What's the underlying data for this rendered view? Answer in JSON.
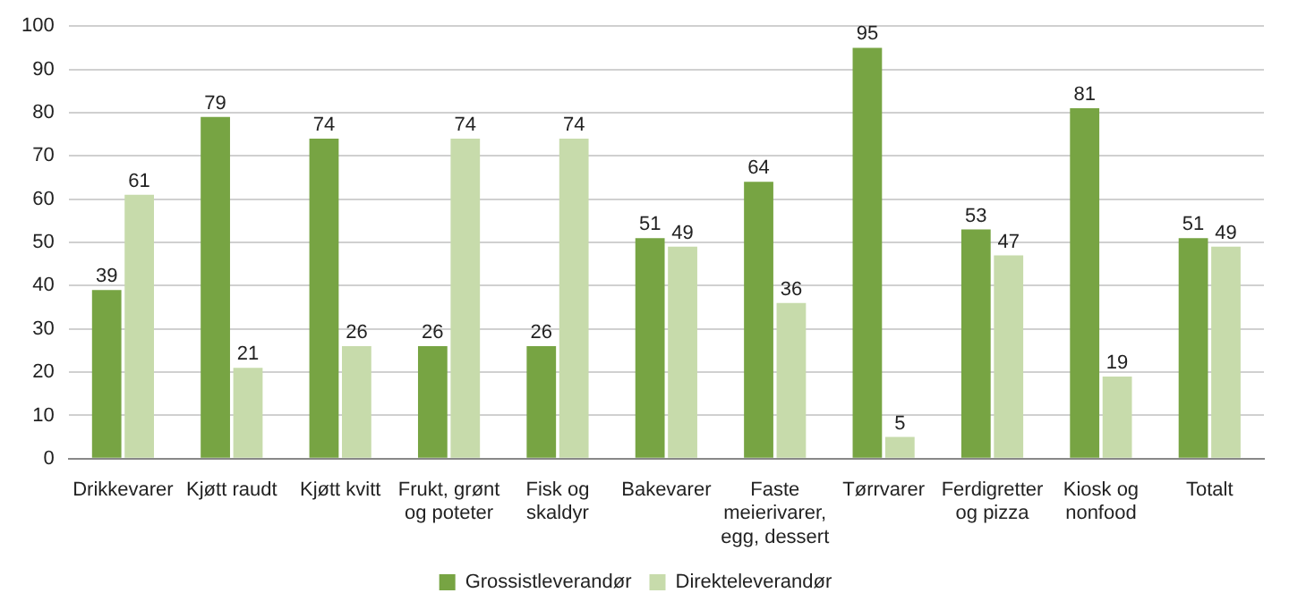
{
  "chart_data": {
    "type": "bar",
    "categories": [
      "Drikkevarer",
      "Kjøtt raudt",
      "Kjøtt kvitt",
      "Frukt, grønt og poteter",
      "Fisk og skaldyr",
      "Bakevarer",
      "Faste meierivarer, egg, dessert",
      "Tørrvarer",
      "Ferdigretter og pizza",
      "Kiosk og nonfood",
      "Totalt"
    ],
    "series": [
      {
        "name": "Grossistleverandør",
        "color": "#77a443",
        "values": [
          39,
          79,
          74,
          26,
          26,
          51,
          64,
          95,
          53,
          81,
          51
        ]
      },
      {
        "name": "Direkteleverandør",
        "color": "#c7dbab",
        "values": [
          61,
          21,
          26,
          74,
          74,
          49,
          36,
          5,
          47,
          19,
          49
        ]
      }
    ],
    "ylim": [
      0,
      100
    ],
    "yticks": [
      0,
      10,
      20,
      30,
      40,
      50,
      60,
      70,
      80,
      90,
      100
    ],
    "grid": "y",
    "legend": "bottom",
    "data_labels": true
  }
}
